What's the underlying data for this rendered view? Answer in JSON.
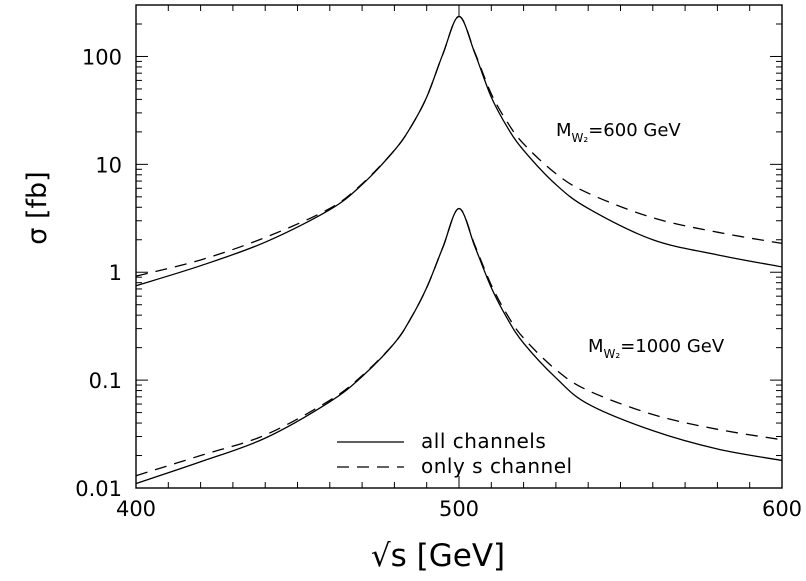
{
  "chart_data": {
    "type": "line",
    "xlabel": "√s   [GeV]",
    "ylabel": "σ  [fb]",
    "x_scale": "linear",
    "y_scale": "log",
    "xlim": [
      400,
      600
    ],
    "ylim": [
      0.01,
      300
    ],
    "x_ticks": [
      400,
      500,
      600
    ],
    "x_tick_labels": [
      "400",
      "500",
      "600"
    ],
    "y_ticks": [
      0.01,
      0.1,
      1,
      10,
      100
    ],
    "y_tick_labels": [
      "0.01",
      "0.1",
      "1",
      "10",
      "100"
    ],
    "grid": false,
    "legend": {
      "placement": "bottom-center",
      "entries": [
        {
          "label": "all channels",
          "style": "solid"
        },
        {
          "label": "only s channel",
          "style": "dashed"
        }
      ]
    },
    "annotations": [
      {
        "text": "M",
        "subscript": "W₂",
        "suffix": "=600  GeV"
      },
      {
        "text": "M",
        "subscript": "W₂",
        "suffix": "=1000  GeV"
      }
    ],
    "x": [
      400,
      420,
      440,
      460,
      470,
      480,
      485,
      490,
      495,
      500,
      505,
      510,
      515,
      520,
      530,
      540,
      560,
      580,
      600
    ],
    "series": [
      {
        "group": "M_W2=600 GeV",
        "style": "solid",
        "values": [
          0.75,
          1.15,
          1.9,
          3.8,
          6.5,
          13.5,
          22,
          42,
          105,
          235,
          105,
          42,
          22,
          13.5,
          6.5,
          3.9,
          2.0,
          1.45,
          1.12
        ]
      },
      {
        "group": "M_W2=600 GeV",
        "style": "dashed",
        "values": [
          0.92,
          1.3,
          2.1,
          3.9,
          6.6,
          13.5,
          22,
          42,
          105,
          235,
          107,
          45,
          24.5,
          15.5,
          8.2,
          5.4,
          3.2,
          2.35,
          1.85
        ]
      },
      {
        "group": "M_W2=1000 GeV",
        "style": "solid",
        "values": [
          0.011,
          0.0175,
          0.029,
          0.063,
          0.108,
          0.22,
          0.37,
          0.72,
          1.7,
          3.9,
          1.7,
          0.72,
          0.37,
          0.22,
          0.105,
          0.06,
          0.034,
          0.023,
          0.018
        ]
      },
      {
        "group": "M_W2=1000 GeV",
        "style": "dashed",
        "values": [
          0.013,
          0.02,
          0.031,
          0.065,
          0.11,
          0.22,
          0.37,
          0.72,
          1.7,
          3.9,
          1.75,
          0.76,
          0.4,
          0.245,
          0.125,
          0.08,
          0.048,
          0.035,
          0.028
        ]
      }
    ]
  }
}
